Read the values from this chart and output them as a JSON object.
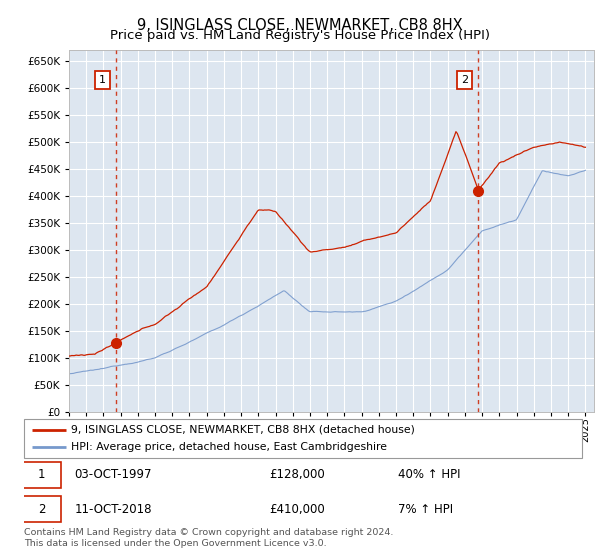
{
  "title": "9, ISINGLASS CLOSE, NEWMARKET, CB8 8HX",
  "subtitle": "Price paid vs. HM Land Registry's House Price Index (HPI)",
  "ylim": [
    0,
    670000
  ],
  "yticks": [
    0,
    50000,
    100000,
    150000,
    200000,
    250000,
    300000,
    350000,
    400000,
    450000,
    500000,
    550000,
    600000,
    650000
  ],
  "xlim_start": 1995.0,
  "xlim_end": 2025.5,
  "plot_bg_color": "#dde6f0",
  "grid_color": "#ffffff",
  "hpi_color": "#7799cc",
  "price_color": "#cc2200",
  "sale1_date": 1997.75,
  "sale1_price": 128000,
  "sale2_date": 2018.78,
  "sale2_price": 410000,
  "legend_label1": "9, ISINGLASS CLOSE, NEWMARKET, CB8 8HX (detached house)",
  "legend_label2": "HPI: Average price, detached house, East Cambridgeshire",
  "table_row1": [
    "1",
    "03-OCT-1997",
    "£128,000",
    "40% ↑ HPI"
  ],
  "table_row2": [
    "2",
    "11-OCT-2018",
    "£410,000",
    "7% ↑ HPI"
  ],
  "footer": "Contains HM Land Registry data © Crown copyright and database right 2024.\nThis data is licensed under the Open Government Licence v3.0."
}
